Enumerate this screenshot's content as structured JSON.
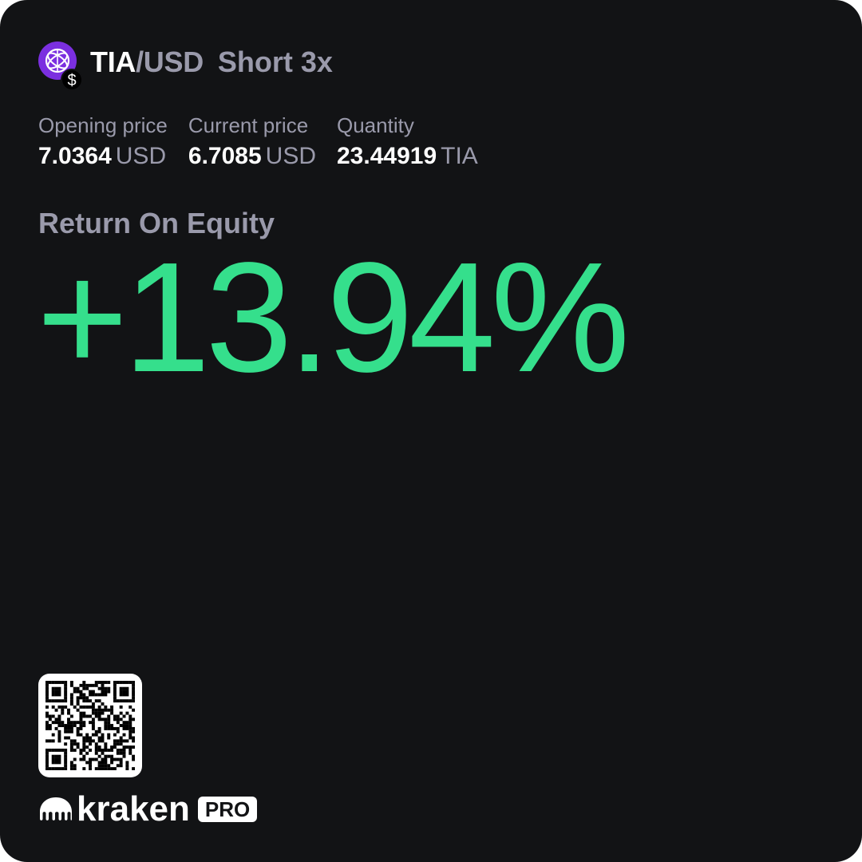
{
  "header": {
    "base_asset": "TIA",
    "separator": "/",
    "quote_asset": "USD",
    "position": "Short 3x",
    "coin_icon": "tia-coin-icon",
    "badge_icon": "usd-dollar-icon",
    "coin_color": "#7b2fe0",
    "badge_glyph": "$"
  },
  "stats": [
    {
      "label": "Opening price",
      "value": "7.0364",
      "unit": "USD"
    },
    {
      "label": "Current price",
      "value": "6.7085",
      "unit": "USD"
    },
    {
      "label": "Quantity",
      "value": "23.44919",
      "unit": "TIA"
    }
  ],
  "roe": {
    "label": "Return On Equity",
    "value": "+13.94%",
    "color": "#35df8c"
  },
  "footer": {
    "qr_icon": "qr-code",
    "logo_icon": "kraken-logo-icon",
    "brand": "kraken",
    "badge": "PRO"
  }
}
